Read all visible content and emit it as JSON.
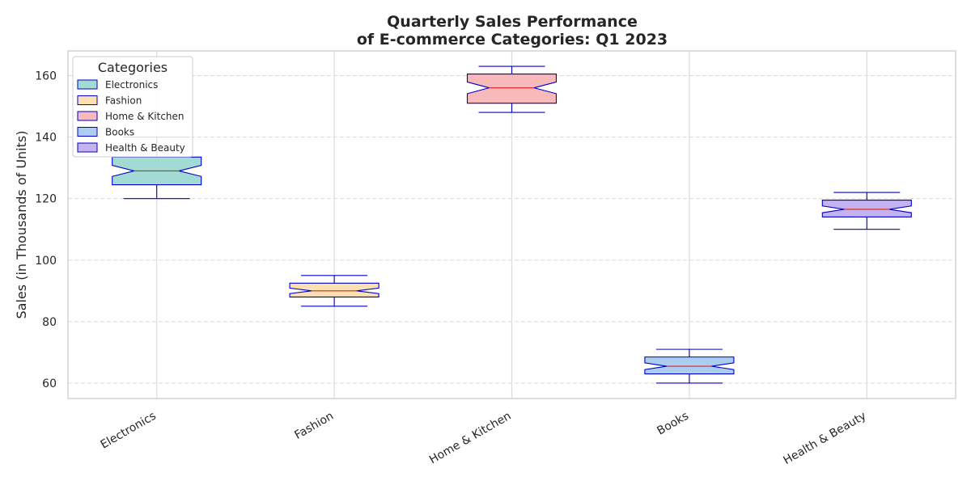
{
  "chart_data": {
    "type": "box",
    "title_lines": [
      "Quarterly Sales Performance",
      "of E-commerce Categories: Q1 2023"
    ],
    "xlabel": "",
    "ylabel": "Sales (in Thousands of Units)",
    "ylim": [
      55,
      168
    ],
    "yticks": [
      60,
      80,
      100,
      120,
      140,
      160
    ],
    "grid": true,
    "notched": true,
    "box_edge_color": "#0000cc",
    "median_color": "#dd2222",
    "categories": [
      "Electronics",
      "Fashion",
      "Home & Kitchen",
      "Books",
      "Health & Beauty"
    ],
    "boxes": [
      {
        "name": "Electronics",
        "whislo": 120,
        "q1": 124.5,
        "med": 129,
        "q3": 133.5,
        "whishi": 140,
        "color": "#a2dbd3"
      },
      {
        "name": "Fashion",
        "whislo": 85,
        "q1": 88,
        "med": 90,
        "q3": 92.5,
        "whishi": 95,
        "color": "#fbe0b0"
      },
      {
        "name": "Home & Kitchen",
        "whislo": 148,
        "q1": 151,
        "med": 156,
        "q3": 160.5,
        "whishi": 163,
        "color": "#f7b9b9"
      },
      {
        "name": "Books",
        "whislo": 60,
        "q1": 63,
        "med": 65.5,
        "q3": 68.5,
        "whishi": 71,
        "color": "#aacdf0"
      },
      {
        "name": "Health & Beauty",
        "whislo": 110,
        "q1": 114,
        "med": 116.5,
        "q3": 119.5,
        "whishi": 122,
        "color": "#c4b3ee"
      }
    ],
    "legend": {
      "title": "Categories",
      "placement": "top-left",
      "entries": [
        {
          "label": "Electronics",
          "color": "#a2dbd3"
        },
        {
          "label": "Fashion",
          "color": "#fbe0b0"
        },
        {
          "label": "Home & Kitchen",
          "color": "#f7b9b9"
        },
        {
          "label": "Books",
          "color": "#aacdf0"
        },
        {
          "label": "Health & Beauty",
          "color": "#c4b3ee"
        }
      ]
    }
  }
}
